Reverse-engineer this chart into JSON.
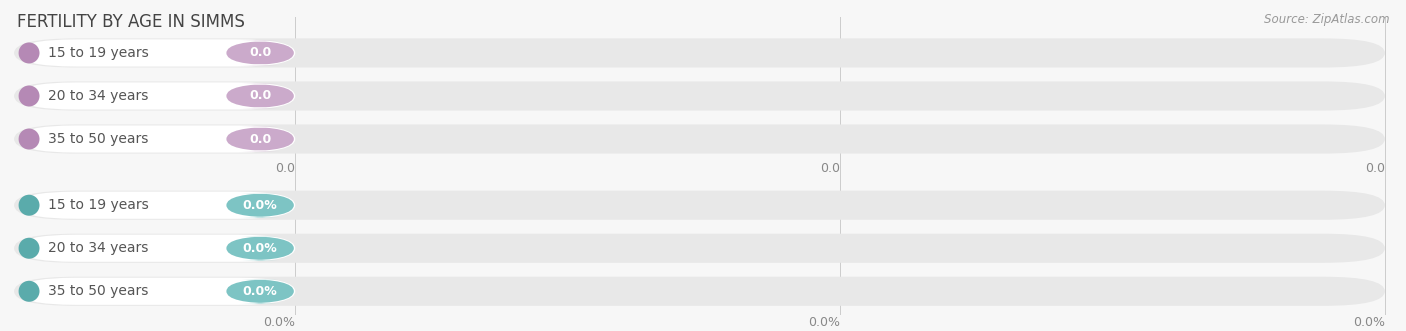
{
  "title": "FERTILITY BY AGE IN SIMMS",
  "source": "Source: ZipAtlas.com",
  "background_color": "#f7f7f7",
  "groups": [
    {
      "labels": [
        "15 to 19 years",
        "20 to 34 years",
        "35 to 50 years"
      ],
      "values": [
        0.0,
        0.0,
        0.0
      ],
      "value_labels": [
        "0.0",
        "0.0",
        "0.0"
      ],
      "bar_color": "#cbaacb",
      "circle_color": "#b589b5",
      "label_color": "#555555",
      "value_text_color": "#ffffff",
      "track_color": "#e8e8e8"
    },
    {
      "labels": [
        "15 to 19 years",
        "20 to 34 years",
        "35 to 50 years"
      ],
      "values": [
        0.0,
        0.0,
        0.0
      ],
      "value_labels": [
        "0.0%",
        "0.0%",
        "0.0%"
      ],
      "bar_color": "#7dc4c4",
      "circle_color": "#5aabab",
      "label_color": "#555555",
      "value_text_color": "#ffffff",
      "track_color": "#e8e8e8"
    }
  ],
  "xtick_labels_top": [
    "0.0",
    "0.0",
    "0.0"
  ],
  "xtick_labels_bottom": [
    "0.0%",
    "0.0%",
    "0.0%"
  ],
  "title_fontsize": 12,
  "source_fontsize": 8.5,
  "label_fontsize": 10,
  "value_fontsize": 9,
  "tick_fontsize": 9
}
